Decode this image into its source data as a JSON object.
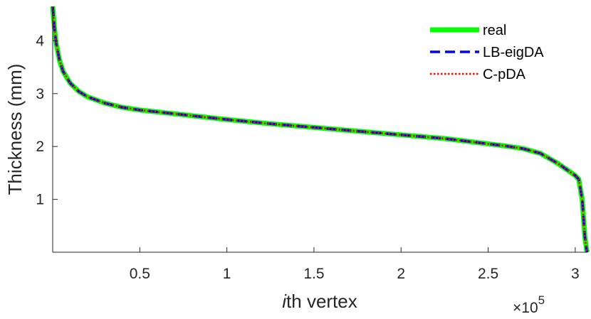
{
  "chart_data": {
    "type": "line",
    "xlabel_prefix": "i",
    "xlabel_rest": "th vertex",
    "ylabel": "Thickness (mm)",
    "x_multiplier_base": "×10",
    "x_multiplier_exp": "5",
    "xlim": [
      0,
      3.07
    ],
    "ylim": [
      0,
      4.65
    ],
    "x_ticks": [
      {
        "value": 0.5,
        "label": "0.5"
      },
      {
        "value": 1,
        "label": "1"
      },
      {
        "value": 1.5,
        "label": "1.5"
      },
      {
        "value": 2,
        "label": "2"
      },
      {
        "value": 2.5,
        "label": "2.5"
      },
      {
        "value": 3,
        "label": "3"
      }
    ],
    "y_ticks": [
      {
        "value": 1,
        "label": "1"
      },
      {
        "value": 2,
        "label": "2"
      },
      {
        "value": 3,
        "label": "3"
      },
      {
        "value": 4,
        "label": "4"
      }
    ],
    "grid": false,
    "legend_position": "top-right",
    "x": [
      0,
      0.01,
      0.02,
      0.04,
      0.06,
      0.1,
      0.15,
      0.2,
      0.3,
      0.4,
      0.5,
      0.75,
      1.0,
      1.25,
      1.5,
      1.75,
      2.0,
      2.25,
      2.5,
      2.6,
      2.7,
      2.8,
      2.9,
      2.97,
      3.0,
      3.02,
      3.04,
      3.055,
      3.065,
      3.07
    ],
    "series": [
      {
        "name": "real",
        "color": "#00ff00",
        "style": "solid",
        "values": [
          4.65,
          4.25,
          3.95,
          3.62,
          3.42,
          3.2,
          3.04,
          2.94,
          2.82,
          2.74,
          2.69,
          2.6,
          2.51,
          2.43,
          2.36,
          2.29,
          2.22,
          2.15,
          2.05,
          2.01,
          1.96,
          1.87,
          1.68,
          1.52,
          1.45,
          1.38,
          1.0,
          0.3,
          0.05,
          0.0
        ]
      },
      {
        "name": "LB-eigDA",
        "color": "#0000ff",
        "style": "dashed",
        "values": [
          4.65,
          4.25,
          3.95,
          3.62,
          3.42,
          3.2,
          3.04,
          2.94,
          2.82,
          2.74,
          2.69,
          2.6,
          2.51,
          2.43,
          2.36,
          2.29,
          2.22,
          2.15,
          2.05,
          2.01,
          1.96,
          1.87,
          1.68,
          1.52,
          1.45,
          1.38,
          1.0,
          0.3,
          0.05,
          0.0
        ]
      },
      {
        "name": "C-pDA",
        "color": "#ff0000",
        "style": "dotted",
        "values": [
          4.65,
          4.25,
          3.95,
          3.62,
          3.42,
          3.2,
          3.04,
          2.94,
          2.82,
          2.74,
          2.69,
          2.6,
          2.51,
          2.43,
          2.36,
          2.29,
          2.22,
          2.15,
          2.05,
          2.01,
          1.96,
          1.87,
          1.68,
          1.52,
          1.45,
          1.38,
          1.0,
          0.3,
          0.05,
          0.0
        ]
      }
    ]
  }
}
